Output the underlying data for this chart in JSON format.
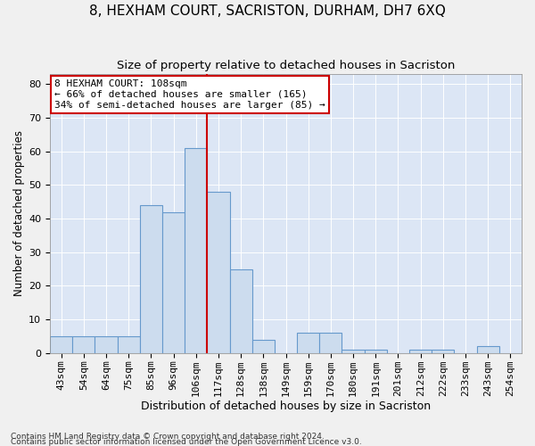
{
  "title": "8, HEXHAM COURT, SACRISTON, DURHAM, DH7 6XQ",
  "subtitle": "Size of property relative to detached houses in Sacriston",
  "xlabel": "Distribution of detached houses by size in Sacriston",
  "ylabel": "Number of detached properties",
  "bins": [
    "43sqm",
    "54sqm",
    "64sqm",
    "75sqm",
    "85sqm",
    "96sqm",
    "106sqm",
    "117sqm",
    "128sqm",
    "138sqm",
    "149sqm",
    "159sqm",
    "170sqm",
    "180sqm",
    "191sqm",
    "201sqm",
    "212sqm",
    "222sqm",
    "233sqm",
    "243sqm",
    "254sqm"
  ],
  "values": [
    5,
    5,
    5,
    5,
    44,
    42,
    61,
    48,
    25,
    4,
    0,
    6,
    6,
    1,
    1,
    0,
    1,
    1,
    0,
    2,
    0
  ],
  "bar_color": "#ccdcee",
  "bar_edge_color": "#6699cc",
  "vline_color": "#cc0000",
  "annotation_text": "8 HEXHAM COURT: 108sqm\n← 66% of detached houses are smaller (165)\n34% of semi-detached houses are larger (85) →",
  "annotation_box_color": "#ffffff",
  "annotation_box_edge": "#cc0000",
  "ylim": [
    0,
    83
  ],
  "yticks": [
    0,
    10,
    20,
    30,
    40,
    50,
    60,
    70,
    80
  ],
  "background_color": "#dce6f5",
  "grid_color": "#ffffff",
  "footer_line1": "Contains HM Land Registry data © Crown copyright and database right 2024.",
  "footer_line2": "Contains public sector information licensed under the Open Government Licence v3.0.",
  "title_fontsize": 11,
  "subtitle_fontsize": 9.5,
  "xlabel_fontsize": 9,
  "ylabel_fontsize": 8.5,
  "tick_fontsize": 8,
  "footer_fontsize": 6.5,
  "annot_fontsize": 8
}
